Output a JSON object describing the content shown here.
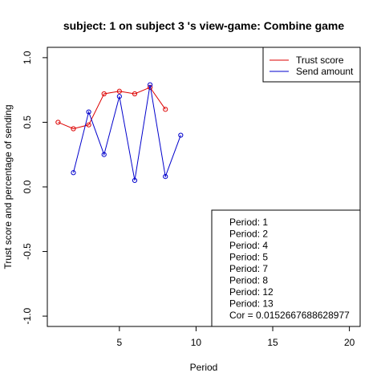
{
  "chart_data": {
    "type": "line",
    "title": "subject:  1  on subject  3 's view-game:  Combine game",
    "xlabel": "Period",
    "ylabel": "Trust score and percentage of sending",
    "xlim": [
      0.3,
      20.7
    ],
    "ylim": [
      -1.08,
      1.08
    ],
    "xticks": [
      5,
      10,
      15,
      20
    ],
    "yticks": [
      -1.0,
      -0.5,
      0.0,
      0.5,
      1.0
    ],
    "ytick_labels": [
      "-1.0",
      "-0.5",
      "0.0",
      "0.5",
      "1.0"
    ],
    "series": [
      {
        "name": "Trust score",
        "color": "#dd0000",
        "x": [
          1,
          2,
          3,
          4,
          5,
          6,
          7,
          8
        ],
        "y": [
          0.5,
          0.45,
          0.48,
          0.72,
          0.74,
          0.72,
          0.77,
          0.6
        ]
      },
      {
        "name": "Send amount",
        "color": "#0000cc",
        "x": [
          2,
          3,
          4,
          5,
          6,
          7,
          8,
          9
        ],
        "y": [
          0.11,
          0.58,
          0.25,
          0.7,
          0.05,
          0.79,
          0.08,
          0.4
        ]
      }
    ],
    "legend": {
      "position": "top-right",
      "entries": [
        "Trust score",
        "Send amount"
      ]
    },
    "info_box": {
      "position": "bottom-right",
      "lines": [
        "Period:  1",
        "Period:  2",
        "Period:  4",
        "Period:  5",
        "Period:  7",
        "Period:  8",
        "Period:  12",
        "Period:  13",
        "Cor =  0.0152667688628977"
      ]
    }
  }
}
